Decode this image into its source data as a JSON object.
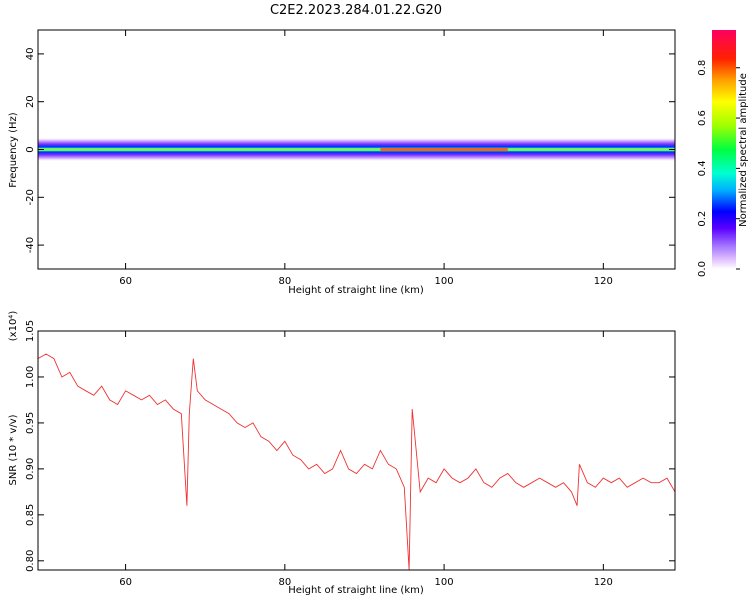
{
  "figure": {
    "title": "C2E2.2023.284.01.22.G20"
  },
  "chart_data": [
    {
      "type": "heatmap",
      "xlabel": "Height of straight line (km)",
      "ylabel": "Frequency (Hz)",
      "xlim": [
        49,
        129
      ],
      "ylim": [
        -50,
        50
      ],
      "x_ticks": [
        60,
        80,
        100,
        120
      ],
      "y_ticks": [
        -40,
        -20,
        0,
        20,
        40
      ],
      "grid": false,
      "band": {
        "center_hz": 0,
        "half_width_hz": 5,
        "description": "narrow spectral band centred at 0 Hz across full height range",
        "peak_height_km": [
          92,
          108
        ]
      },
      "colorbar": {
        "label": "Normalized spectral amplitude",
        "range": [
          0.0,
          0.95
        ],
        "ticks": [
          0.0,
          0.2,
          0.4,
          0.6,
          0.8
        ],
        "tick_labels": [
          "0.0",
          "0.2",
          "0.4",
          "0.6",
          "0.8"
        ],
        "colormap": [
          "#ffffff",
          "#e0c0ff",
          "#a070ff",
          "#5a00ff",
          "#0000ff",
          "#00b0ff",
          "#00ffd0",
          "#00ff40",
          "#a0ff00",
          "#ffff00",
          "#ffa000",
          "#ff2000",
          "#ff0060"
        ]
      }
    },
    {
      "type": "line",
      "xlabel": "Height of straight line (km)",
      "ylabel": "SNR (10 * v/v)",
      "y_multiplier_label": "(x10⁴)",
      "xlim": [
        49,
        129
      ],
      "ylim": [
        0.79,
        1.05
      ],
      "x_ticks": [
        60,
        80,
        100,
        120
      ],
      "y_ticks": [
        0.8,
        0.85,
        0.9,
        0.95,
        1.0,
        1.05
      ],
      "y_tick_labels": [
        "0.80",
        "0.85",
        "0.90",
        "0.95",
        "1.00",
        "1.05"
      ],
      "grid": false,
      "color": "#ee3333",
      "series": [
        {
          "x": [
            49,
            50,
            51,
            52,
            53,
            54,
            55,
            56,
            57,
            58,
            59,
            60,
            61,
            62,
            63,
            64,
            65,
            66,
            67,
            67.7,
            68,
            68.5,
            69,
            70,
            71,
            72,
            73,
            74,
            75,
            76,
            77,
            78,
            79,
            80,
            81,
            82,
            83,
            84,
            85,
            86,
            87,
            88,
            89,
            90,
            91,
            92,
            93,
            94,
            95,
            95.6,
            96,
            96.5,
            97,
            98,
            99,
            100,
            101,
            102,
            103,
            104,
            105,
            106,
            107,
            108,
            109,
            110,
            111,
            112,
            113,
            114,
            115,
            116,
            116.7,
            117,
            118,
            119,
            120,
            121,
            122,
            123,
            124,
            125,
            126,
            127,
            128,
            129
          ],
          "values": [
            1.02,
            1.025,
            1.02,
            1.0,
            1.005,
            0.99,
            0.985,
            0.98,
            0.99,
            0.975,
            0.97,
            0.985,
            0.98,
            0.975,
            0.98,
            0.97,
            0.975,
            0.965,
            0.96,
            0.86,
            0.96,
            1.02,
            0.985,
            0.975,
            0.97,
            0.965,
            0.96,
            0.95,
            0.945,
            0.95,
            0.935,
            0.93,
            0.92,
            0.93,
            0.915,
            0.91,
            0.9,
            0.905,
            0.895,
            0.9,
            0.92,
            0.9,
            0.895,
            0.905,
            0.9,
            0.92,
            0.905,
            0.9,
            0.88,
            0.79,
            0.965,
            0.92,
            0.875,
            0.89,
            0.885,
            0.9,
            0.89,
            0.885,
            0.89,
            0.9,
            0.885,
            0.88,
            0.89,
            0.895,
            0.885,
            0.88,
            0.885,
            0.89,
            0.885,
            0.88,
            0.885,
            0.875,
            0.86,
            0.905,
            0.885,
            0.88,
            0.89,
            0.885,
            0.89,
            0.88,
            0.885,
            0.89,
            0.885,
            0.885,
            0.89,
            0.875
          ]
        }
      ]
    }
  ]
}
